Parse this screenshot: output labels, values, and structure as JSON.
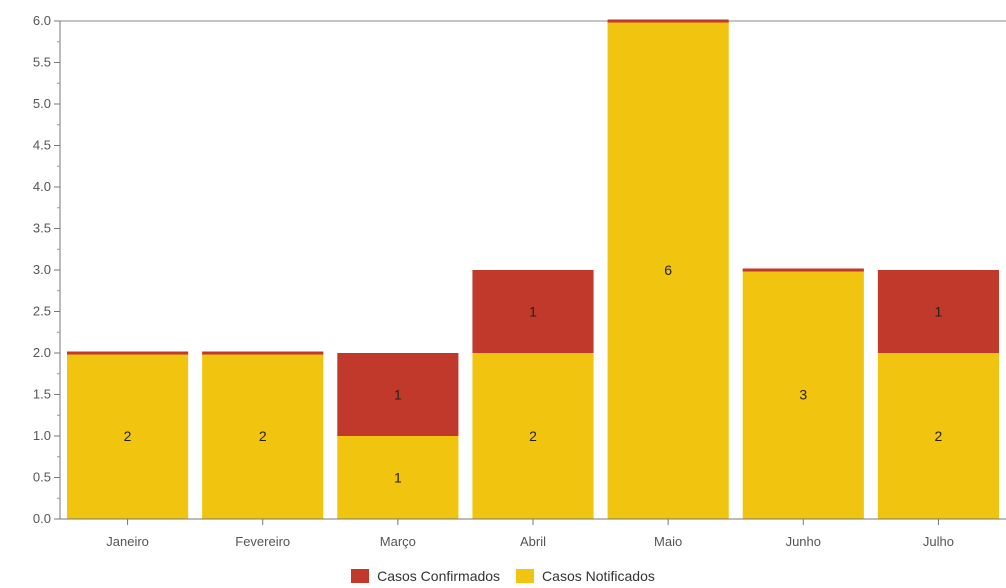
{
  "chart_data": {
    "type": "bar",
    "stacked": true,
    "categories": [
      "Janeiro",
      "Fevereiro",
      "Março",
      "Abril",
      "Maio",
      "Junho",
      "Julho"
    ],
    "series": [
      {
        "name": "Casos Notificados",
        "color": "#f1c40f",
        "values": [
          2,
          2,
          1,
          2,
          6,
          3,
          2
        ]
      },
      {
        "name": "Casos Confirmados",
        "color": "#c0392b",
        "values": [
          0,
          0,
          1,
          1,
          0,
          0,
          1
        ]
      }
    ],
    "ylim": [
      0,
      6
    ],
    "yticks": [
      "0.0",
      "0.5",
      "1.0",
      "1.5",
      "2.0",
      "2.5",
      "3.0",
      "3.5",
      "4.0",
      "4.5",
      "5.0",
      "5.5",
      "6.0"
    ],
    "grid": false,
    "legend_position": "bottom-center",
    "legend": [
      "Casos Confirmados",
      "Casos Notificados"
    ]
  }
}
